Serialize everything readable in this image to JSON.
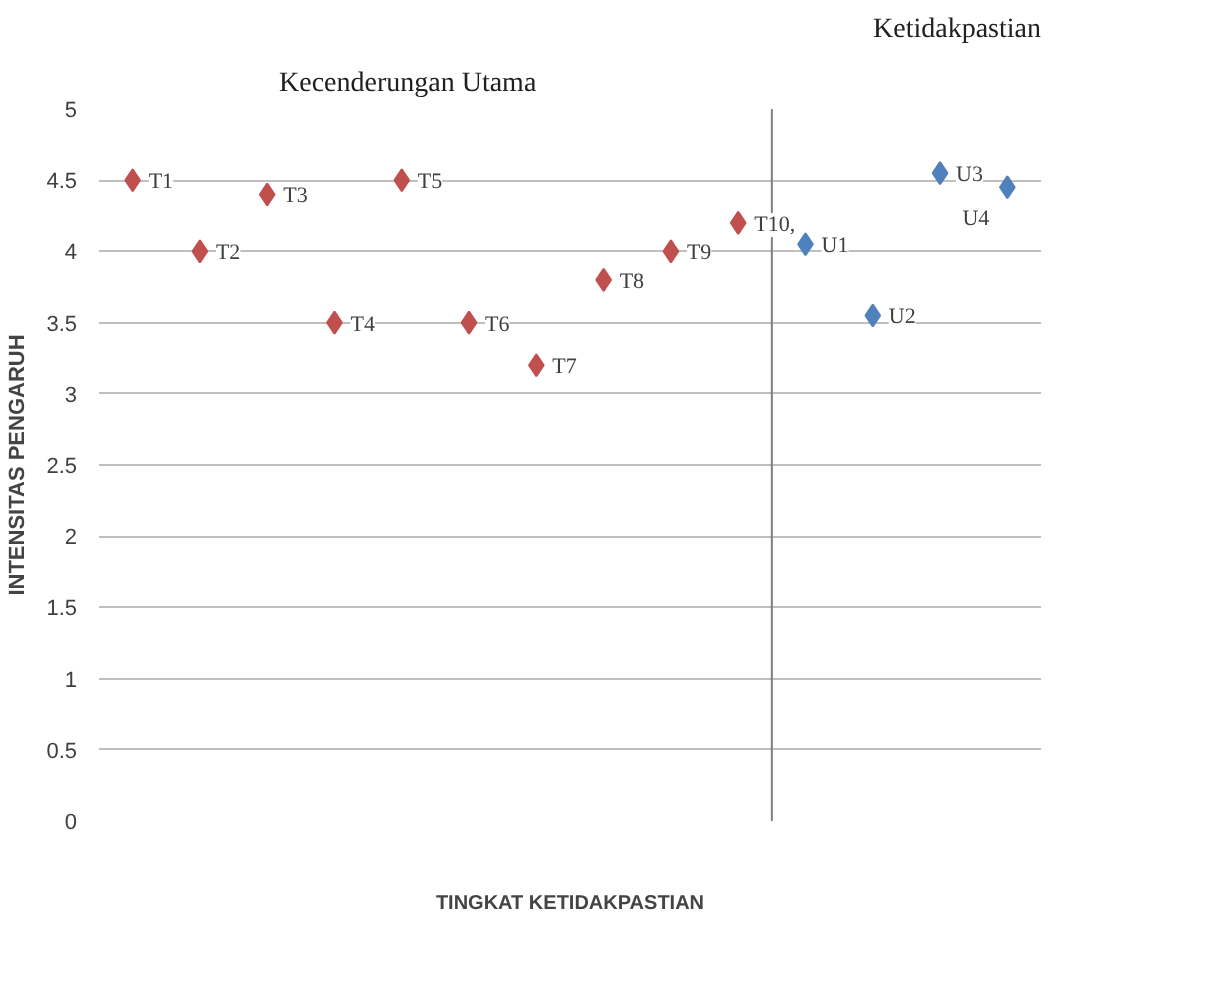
{
  "chart_data": {
    "type": "scatter",
    "xlabel": "TINGKAT KETIDAKPASTIAN",
    "ylabel": "INTENSITAS PENGARUH",
    "annotations": [
      "Kecenderungan Utama",
      "Ketidakpastian"
    ],
    "categories": [
      null,
      null,
      null,
      null,
      null,
      null,
      null,
      null,
      null,
      null,
      null,
      null,
      null,
      null
    ],
    "series": [
      {
        "color": "#c0504d",
        "values": [
          4.5,
          4.0,
          4.4,
          3.5,
          4.5,
          3.5,
          3.2,
          3.8,
          4.0,
          4.2,
          null,
          null,
          null,
          null
        ],
        "value_labels": [
          "T1",
          "T2",
          "T3",
          "T4",
          "T5",
          "T6",
          "T7",
          "T8",
          "T9",
          "T10,",
          null,
          null,
          null,
          null
        ]
      },
      {
        "color": "#4f81bd",
        "values": [
          null,
          null,
          null,
          null,
          null,
          null,
          null,
          null,
          null,
          null,
          4.05,
          3.55,
          4.55,
          4.45
        ],
        "value_labels": [
          null,
          null,
          null,
          null,
          null,
          null,
          null,
          null,
          null,
          null,
          "U1",
          "U2",
          "U3",
          "U4"
        ]
      }
    ],
    "ylim": [
      0,
      5
    ],
    "yticks": [
      0,
      0.5,
      1,
      1.5,
      2,
      2.5,
      3,
      3.5,
      4,
      4.5,
      5
    ],
    "grid": "y",
    "marker": "diamond",
    "tick_labels": "y"
  }
}
